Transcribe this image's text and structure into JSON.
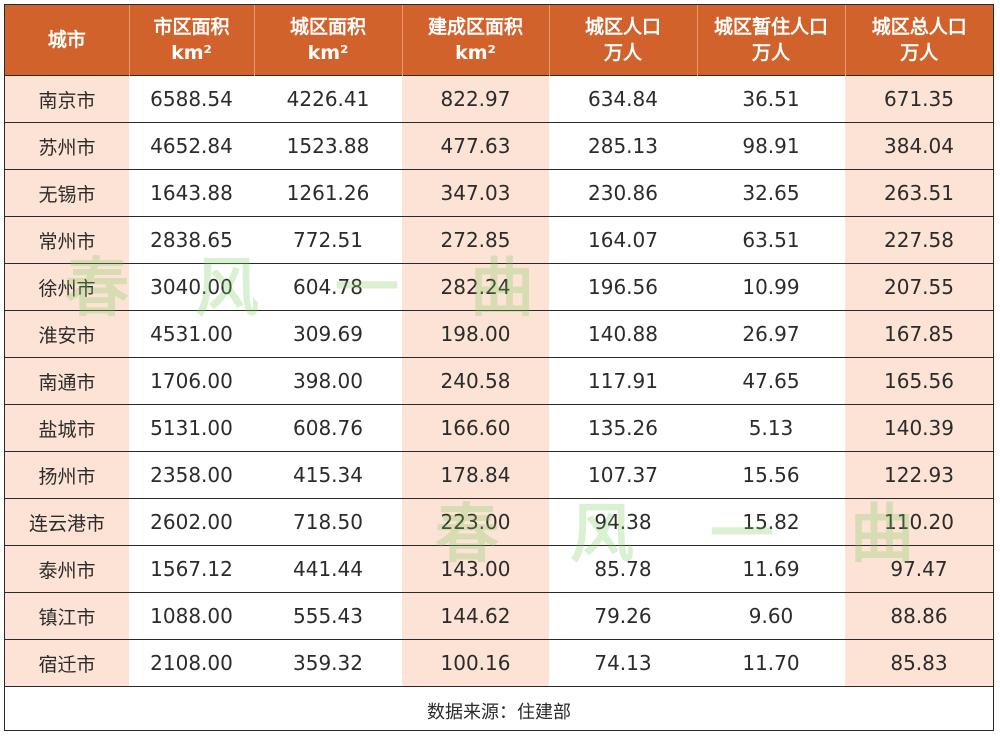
{
  "header": {
    "columns": [
      {
        "line1": "城市",
        "line2": ""
      },
      {
        "line1": "市区面积",
        "line2": "km²"
      },
      {
        "line1": "城区面积",
        "line2": "km²"
      },
      {
        "line1": "建成区面积",
        "line2": "km²"
      },
      {
        "line1": "城区人口",
        "line2": "万人"
      },
      {
        "line1": "城区暂住人口",
        "line2": "万人"
      },
      {
        "line1": "城区总人口",
        "line2": "万人"
      }
    ]
  },
  "rows": [
    [
      "南京市",
      "6588.54",
      "4226.41",
      "822.97",
      "634.84",
      "36.51",
      "671.35"
    ],
    [
      "苏州市",
      "4652.84",
      "1523.88",
      "477.63",
      "285.13",
      "98.91",
      "384.04"
    ],
    [
      "无锡市",
      "1643.88",
      "1261.26",
      "347.03",
      "230.86",
      "32.65",
      "263.51"
    ],
    [
      "常州市",
      "2838.65",
      "772.51",
      "272.85",
      "164.07",
      "63.51",
      "227.58"
    ],
    [
      "徐州市",
      "3040.00",
      "604.78",
      "282.24",
      "196.56",
      "10.99",
      "207.55"
    ],
    [
      "淮安市",
      "4531.00",
      "309.69",
      "198.00",
      "140.88",
      "26.97",
      "167.85"
    ],
    [
      "南通市",
      "1706.00",
      "398.00",
      "240.58",
      "117.91",
      "47.65",
      "165.56"
    ],
    [
      "盐城市",
      "5131.00",
      "608.76",
      "166.60",
      "135.26",
      "5.13",
      "140.39"
    ],
    [
      "扬州市",
      "2358.00",
      "415.34",
      "178.84",
      "107.37",
      "15.56",
      "122.93"
    ],
    [
      "连云港市",
      "2602.00",
      "718.50",
      "223.00",
      "94.38",
      "15.82",
      "110.20"
    ],
    [
      "泰州市",
      "1567.12",
      "441.44",
      "143.00",
      "85.78",
      "11.69",
      "97.47"
    ],
    [
      "镇江市",
      "1088.00",
      "555.43",
      "144.62",
      "79.26",
      "9.60",
      "88.86"
    ],
    [
      "宿迁市",
      "2108.00",
      "359.32",
      "100.16",
      "74.13",
      "11.70",
      "85.83"
    ]
  ],
  "footer": {
    "source": "数据来源：住建部"
  },
  "watermark": {
    "chars": [
      "春",
      "风",
      "一",
      "曲"
    ]
  },
  "colors": {
    "header_bg": "#d2622c",
    "shade": "#fde3d6",
    "watermark": "#78c85a"
  }
}
